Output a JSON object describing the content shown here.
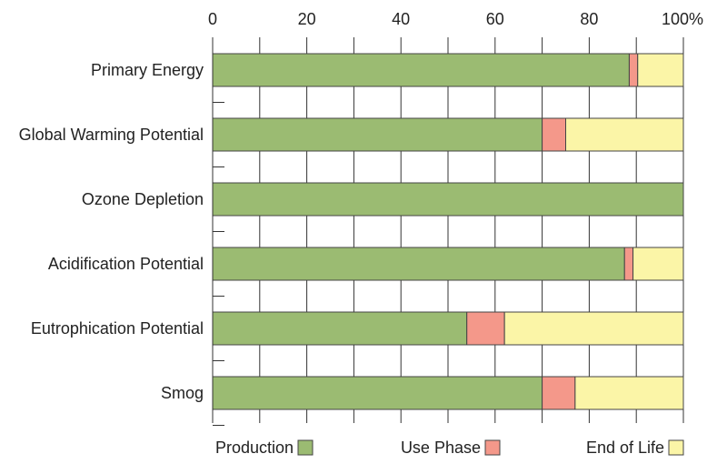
{
  "chart_data": {
    "type": "bar",
    "orientation": "horizontal",
    "stacked": true,
    "categories": [
      "Primary Energy",
      "Global Warming Potential",
      "Ozone Depletion",
      "Acidification Potential",
      "Eutrophication Potential",
      "Smog"
    ],
    "series": [
      {
        "name": "Production",
        "color": "#9bbb72",
        "values": [
          88.5,
          70,
          100,
          87.5,
          54,
          70
        ]
      },
      {
        "name": "Use Phase",
        "color": "#f4988a",
        "values": [
          1.8,
          5,
          0,
          1.8,
          8,
          7
        ]
      },
      {
        "name": "End of Life",
        "color": "#fbf5a7",
        "values": [
          9.7,
          25,
          0,
          10.7,
          38,
          23
        ]
      }
    ],
    "xticks": [
      "0",
      "20",
      "40",
      "60",
      "80",
      "100%"
    ],
    "xlim": [
      0,
      100
    ],
    "grid": true,
    "legend_position": "bottom"
  }
}
